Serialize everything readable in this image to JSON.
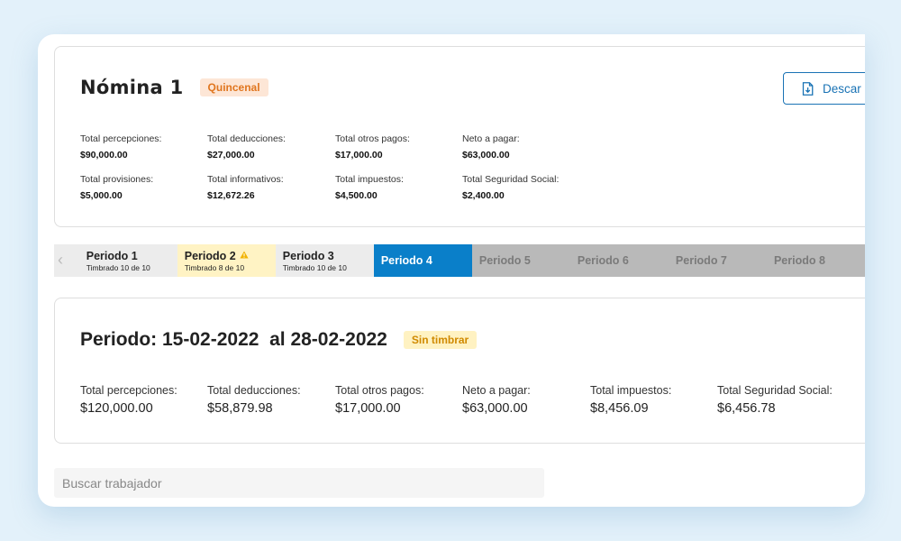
{
  "payroll": {
    "title": "Nómina 1",
    "frequency_badge": "Quincenal",
    "download_label": "Descar",
    "summary": [
      {
        "label": "Total percepciones:",
        "value": "$90,000.00"
      },
      {
        "label": "Total deducciones:",
        "value": "$27,000.00"
      },
      {
        "label": "Total otros pagos:",
        "value": "$17,000.00"
      },
      {
        "label": "Neto a pagar:",
        "value": "$63,000.00"
      },
      {
        "label": "Total provisiones:",
        "value": "$5,000.00"
      },
      {
        "label": "Total informativos:",
        "value": "$12,672.26"
      },
      {
        "label": "Total impuestos:",
        "value": "$4,500.00"
      },
      {
        "label": "Total Seguridad Social:",
        "value": "$2,400.00"
      }
    ]
  },
  "tabs": [
    {
      "name": "Periodo 1",
      "sub": "Timbrado 10 de 10",
      "state": "done"
    },
    {
      "name": "Periodo 2",
      "sub": "Timbrado 8 de 10",
      "state": "warning"
    },
    {
      "name": "Periodo 3",
      "sub": "Timbrado 10 de 10",
      "state": "done"
    },
    {
      "name": "Periodo 4",
      "sub": "",
      "state": "active"
    },
    {
      "name": "Periodo 5",
      "sub": "",
      "state": "pending"
    },
    {
      "name": "Periodo 6",
      "sub": "",
      "state": "pending"
    },
    {
      "name": "Periodo 7",
      "sub": "",
      "state": "pending"
    },
    {
      "name": "Periodo 8",
      "sub": "",
      "state": "pending"
    }
  ],
  "period": {
    "title": "Periodo: 15-02-2022  al 28-02-2022",
    "status_badge": "Sin timbrar",
    "summary": [
      {
        "label": "Total percepciones:",
        "value": "$120,000.00"
      },
      {
        "label": "Total deducciones:",
        "value": "$58,879.98"
      },
      {
        "label": "Total otros pagos:",
        "value": "$17,000.00"
      },
      {
        "label": "Neto a pagar:",
        "value": "$63,000.00"
      },
      {
        "label": "Total impuestos:",
        "value": "$8,456.09"
      },
      {
        "label": "Total Seguridad Social:",
        "value": "$6,456.78"
      }
    ]
  },
  "search": {
    "placeholder": "Buscar trabajador",
    "value": ""
  },
  "colors": {
    "accent": "#0a7fc9",
    "badge_orange": "#e0761f",
    "badge_yellow": "#d08a00",
    "warning_icon": "#f2b300"
  },
  "icons": {
    "download": "file-download-icon",
    "warning": "warning-triangle-icon",
    "prev": "chevron-left-icon"
  }
}
